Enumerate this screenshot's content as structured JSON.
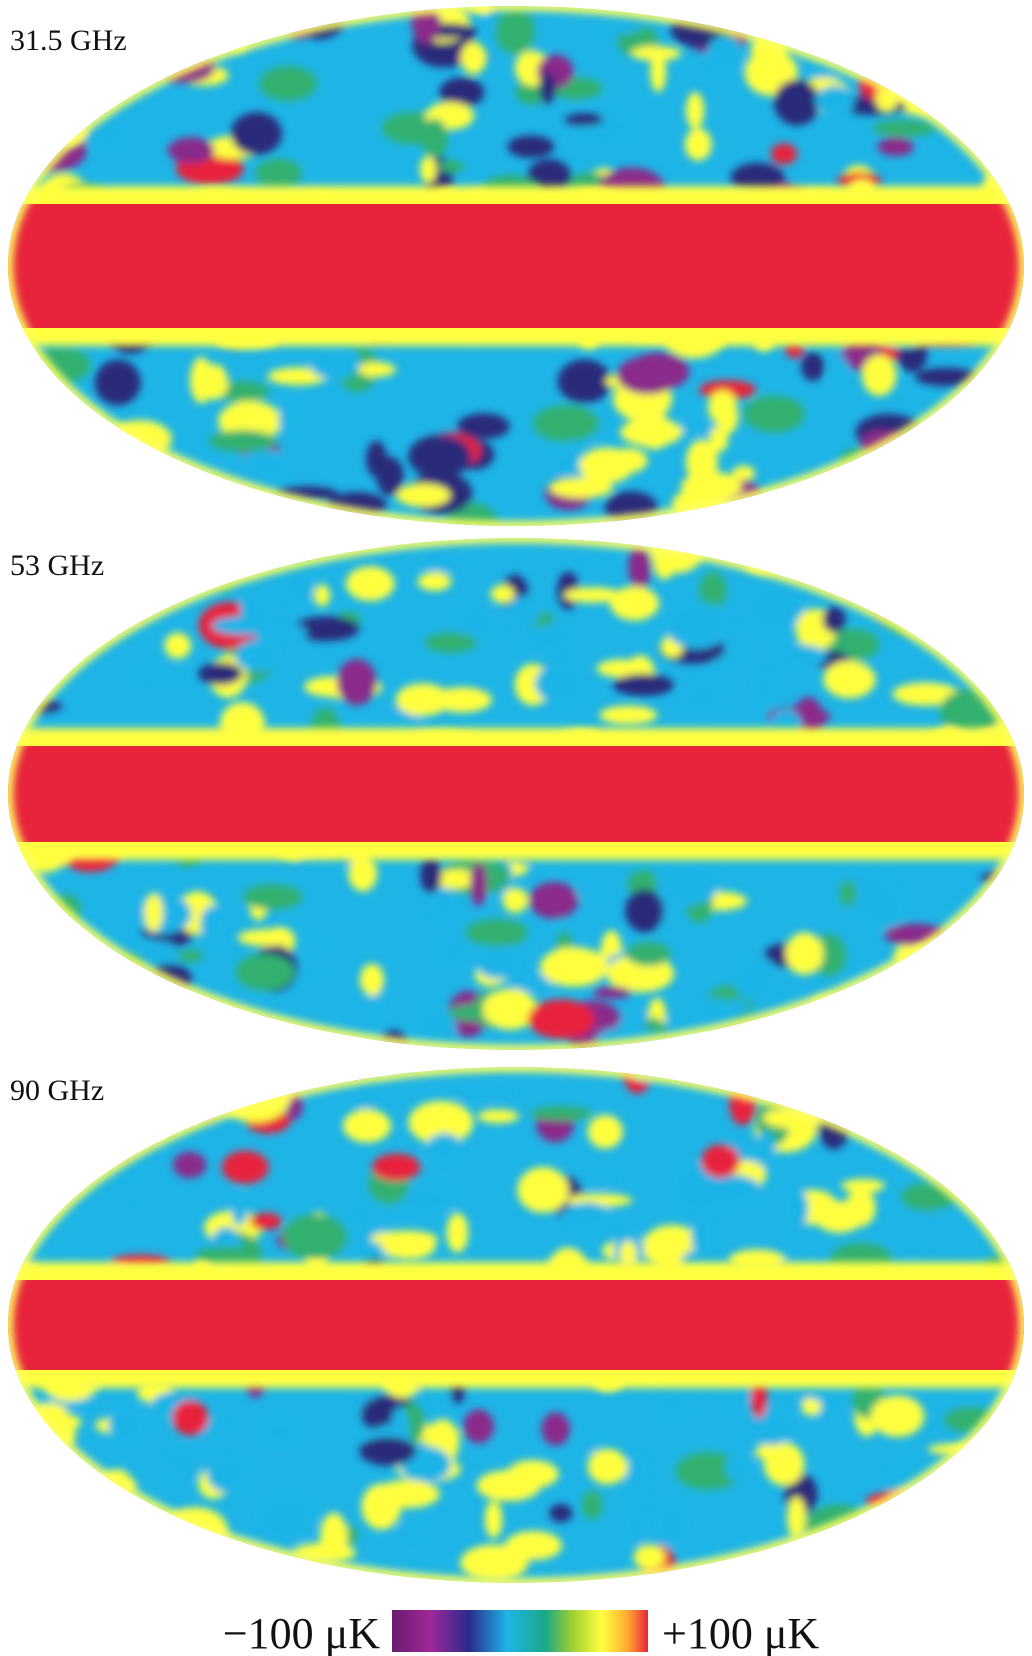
{
  "panels": [
    {
      "label": "31.5 GHz"
    },
    {
      "label": "53 GHz"
    },
    {
      "label": "90 GHz"
    }
  ],
  "colorbar": {
    "min_label": "−100 μK",
    "max_label": "+100 μK"
  }
}
